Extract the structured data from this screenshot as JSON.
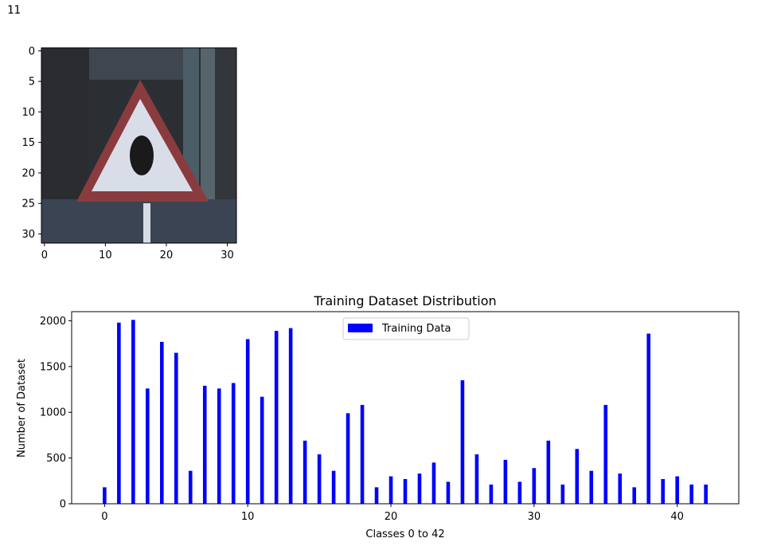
{
  "output_label": "11",
  "image_panel": {
    "description_icon": "traffic-sign-image",
    "x_ticks": [
      "0",
      "10",
      "20",
      "30"
    ],
    "y_ticks": [
      "0",
      "5",
      "10",
      "15",
      "20",
      "25",
      "30"
    ]
  },
  "chart_data": {
    "type": "bar",
    "title": "Training Dataset Distribution",
    "xlabel": "Classes 0 to 42",
    "ylabel": "Number of Dataset",
    "xlim": [
      -2.3,
      44.3
    ],
    "ylim": [
      0,
      2100
    ],
    "x_ticks": [
      0,
      10,
      20,
      30,
      40
    ],
    "y_ticks": [
      0,
      500,
      1000,
      1500,
      2000
    ],
    "bar_color": "#0000ff",
    "legend": {
      "position": "top-center",
      "entries": [
        "Training Data"
      ]
    },
    "series": [
      {
        "name": "Training Data",
        "x": [
          0,
          1,
          2,
          3,
          4,
          5,
          6,
          7,
          8,
          9,
          10,
          11,
          12,
          13,
          14,
          15,
          16,
          17,
          18,
          19,
          20,
          21,
          22,
          23,
          24,
          25,
          26,
          27,
          28,
          29,
          30,
          31,
          32,
          33,
          34,
          35,
          36,
          37,
          38,
          39,
          40,
          41,
          42
        ],
        "values": [
          180,
          1980,
          2010,
          1260,
          1770,
          1650,
          360,
          1290,
          1260,
          1320,
          1800,
          1170,
          1890,
          1920,
          690,
          540,
          360,
          990,
          1080,
          180,
          300,
          270,
          330,
          450,
          240,
          1350,
          540,
          210,
          480,
          240,
          390,
          690,
          210,
          599,
          360,
          1080,
          330,
          180,
          1860,
          270,
          300,
          210,
          210
        ]
      }
    ]
  }
}
